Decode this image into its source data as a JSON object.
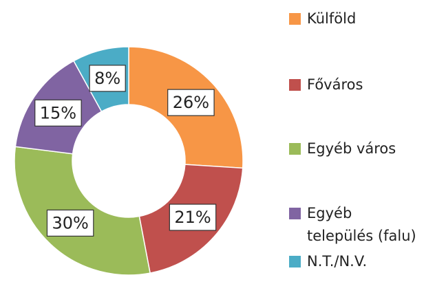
{
  "chart_data": {
    "type": "donut",
    "categories": [
      "Külföld",
      "Főváros",
      "Egyéb város",
      "Egyéb település (falu)",
      "N.T./N.V."
    ],
    "values": [
      26,
      21,
      30,
      15,
      8
    ],
    "value_labels": [
      "26%",
      "21%",
      "30%",
      "15%",
      "8%"
    ],
    "colors": [
      "#f79646",
      "#c0504d",
      "#9bbb59",
      "#8064a2",
      "#4bacc6"
    ],
    "legend": "right"
  }
}
